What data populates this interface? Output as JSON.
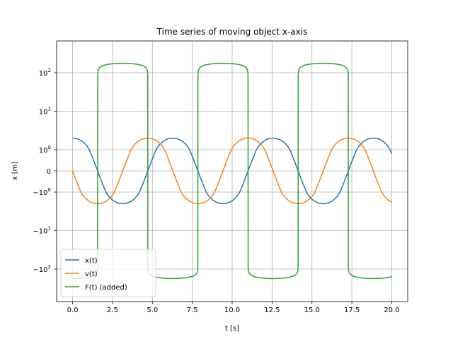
{
  "chart_data": {
    "type": "line",
    "title": "Time series of moving object x-axis",
    "xlabel": "t [s]",
    "ylabel": "x [m]",
    "xlim": [
      -1.0,
      21.0
    ],
    "yscale": "symlog",
    "symlog_linthresh": 1,
    "grid": true,
    "legend_position": "lower-left",
    "x_ticks": [
      0.0,
      2.5,
      5.0,
      7.5,
      10.0,
      12.5,
      15.0,
      17.5,
      20.0
    ],
    "x_tick_labels": [
      "0.0",
      "2.5",
      "5.0",
      "7.5",
      "10.0",
      "12.5",
      "15.0",
      "17.5",
      "20.0"
    ],
    "y_ticks": [
      -100,
      -10,
      -1,
      0,
      1,
      10,
      100
    ],
    "y_tick_labels": [
      {
        "base": "−10",
        "exp": "2"
      },
      {
        "base": "−10",
        "exp": "1"
      },
      {
        "base": "−10",
        "exp": "0"
      },
      {
        "base": "0",
        "exp": ""
      },
      {
        "base": "10",
        "exp": "0"
      },
      {
        "base": "10",
        "exp": "1"
      },
      {
        "base": "10",
        "exp": "2"
      }
    ],
    "series": [
      {
        "name": "x(t)",
        "color": "#1f77b4",
        "formula": "2*cos(t)",
        "t_range": [
          0,
          20
        ]
      },
      {
        "name": "v(t)",
        "color": "#ff7f0e",
        "formula": "-2*sin(t)",
        "t_range": [
          0,
          20
        ]
      },
      {
        "name": "F(t) (added)",
        "color": "#2ca02c",
        "formula": "-176*cos(t)^(1/8) approx (sign(-cos t) * |cos t|^(1/8) * 176)",
        "t_range": [
          0,
          20
        ]
      }
    ]
  }
}
